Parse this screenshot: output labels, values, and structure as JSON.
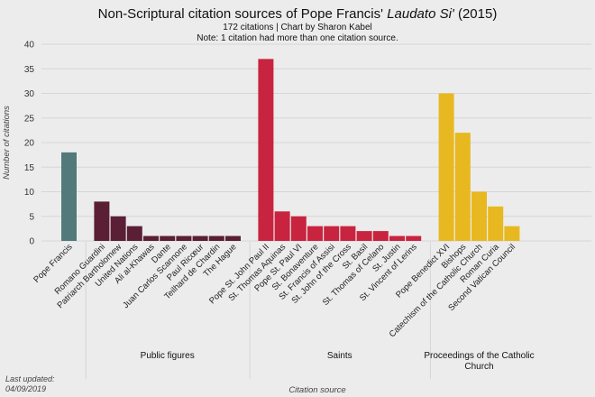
{
  "chart_data": {
    "type": "bar",
    "title_main": "Non-Scriptural citation sources of Pope Francis'",
    "title_italic": "Laudato Si'",
    "title_end": "(2015)",
    "subtitle1": "172 citations | Chart by Sharon Kabel",
    "subtitle2": "Note: 1 citation had more than one citation source.",
    "xlabel": "Citation source",
    "ylabel": "Number of citations",
    "ylim": [
      0,
      40
    ],
    "yticks": [
      "0",
      "5",
      "10",
      "15",
      "20",
      "25",
      "30",
      "35",
      "40"
    ],
    "footnote_line1": "Last updated:",
    "footnote_line2": "04/09/2019",
    "grid": true,
    "groups": [
      {
        "name": "",
        "color": "#527a7a",
        "categories": [
          "Pope Francis"
        ],
        "values": [
          18
        ]
      },
      {
        "name": "Public figures",
        "color": "#5a1f35",
        "categories": [
          "Romano Guardini",
          "Patriarch Bartholomew",
          "United Nations",
          "Ali al-Khawas",
          "Dante",
          "Juan Carlos Scannone",
          "Paul Ricœur",
          "Teilhard de Chardin",
          "The Hague"
        ],
        "values": [
          8,
          5,
          3,
          1,
          1,
          1,
          1,
          1,
          1
        ]
      },
      {
        "name": "Saints",
        "color": "#c8243f",
        "categories": [
          "Pope St. John Paul II",
          "St. Thomas Aquinas",
          "Pope St. Paul VI",
          "St. Bonaventure",
          "St. Francis of Assisi",
          "St. John of the Cross",
          "St. Basil",
          "St. Thomas of Celano",
          "St. Justin",
          "St. Vincent of Lerins"
        ],
        "values": [
          37,
          6,
          5,
          3,
          3,
          3,
          2,
          2,
          1,
          1
        ]
      },
      {
        "name_line1": "Proceedings of the Catholic",
        "name_line2": "Church",
        "color": "#e8b820",
        "categories": [
          "Pope Benedict XVI",
          "Bishops",
          "Catechism of the Catholic Church",
          "Roman Curia",
          "Second Vatican Council"
        ],
        "values": [
          30,
          22,
          10,
          7,
          3
        ]
      }
    ]
  }
}
